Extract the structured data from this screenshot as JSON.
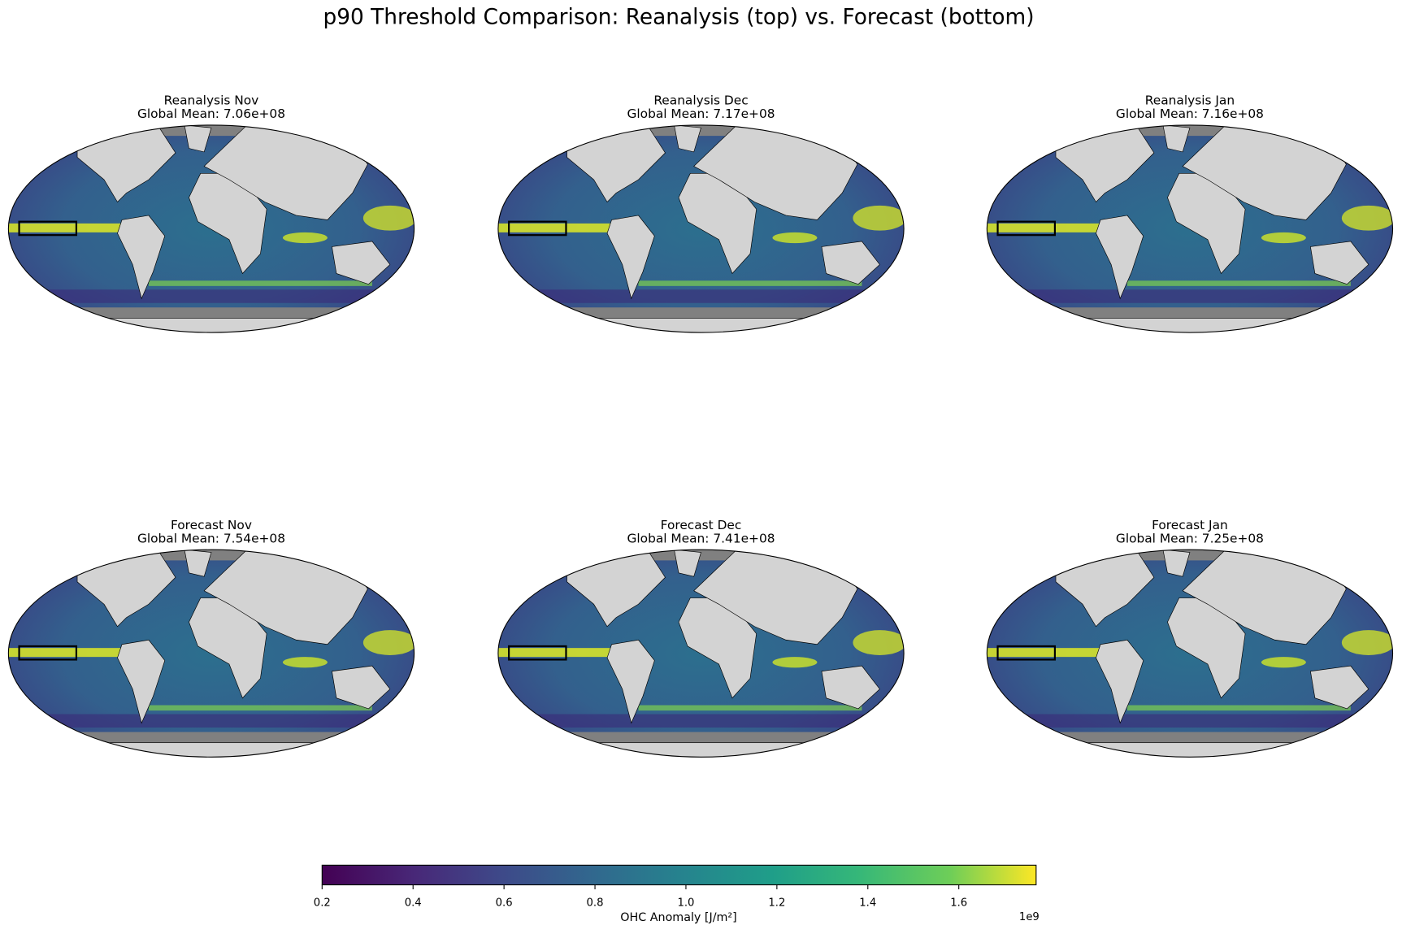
{
  "title": "p90 Threshold Comparison: Reanalysis (top) vs. Forecast (bottom)",
  "panels": [
    {
      "title": "Reanalysis Nov",
      "subtitle": "Global Mean: 7.06e+08"
    },
    {
      "title": "Reanalysis Dec",
      "subtitle": "Global Mean: 7.17e+08"
    },
    {
      "title": "Reanalysis Jan",
      "subtitle": "Global Mean: 7.16e+08"
    },
    {
      "title": "Forecast Nov",
      "subtitle": "Global Mean: 7.54e+08"
    },
    {
      "title": "Forecast Dec",
      "subtitle": "Global Mean: 7.41e+08"
    },
    {
      "title": "Forecast Jan",
      "subtitle": "Global Mean: 7.25e+08"
    }
  ],
  "colorbar": {
    "label": "OHC Anomaly [J/m²]",
    "offset_label": "1e9",
    "colormap": "viridis",
    "lim": [
      0.2,
      1.77
    ],
    "ticks": [
      0.2,
      0.4,
      0.6,
      0.8,
      {
        "value": 1.0,
        "label": "1.0"
      },
      1.2,
      1.4,
      1.6
    ]
  }
}
